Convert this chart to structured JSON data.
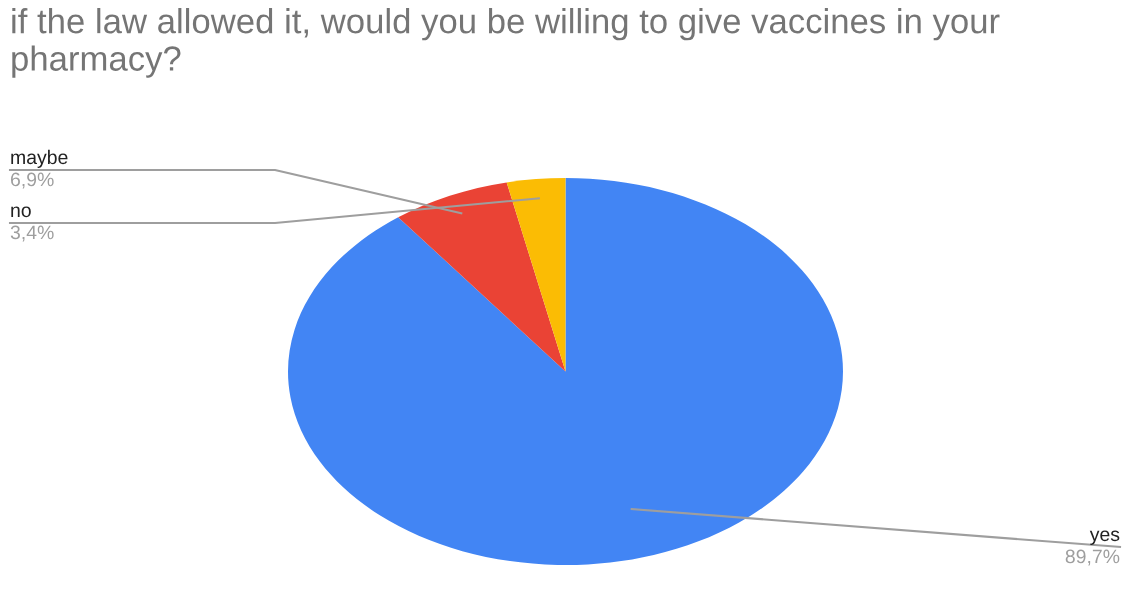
{
  "chart_data": {
    "type": "pie",
    "title": "if the law allowed it, would you be willing to give vaccines in your pharmacy?",
    "categories": [
      "yes",
      "maybe",
      "no"
    ],
    "values": [
      89.7,
      6.9,
      3.4
    ],
    "colors": [
      "#4285f4",
      "#ea4335",
      "#fbbc04"
    ],
    "value_labels": [
      "89,7%",
      "6,9%",
      "3,4%"
    ],
    "legend": false
  }
}
